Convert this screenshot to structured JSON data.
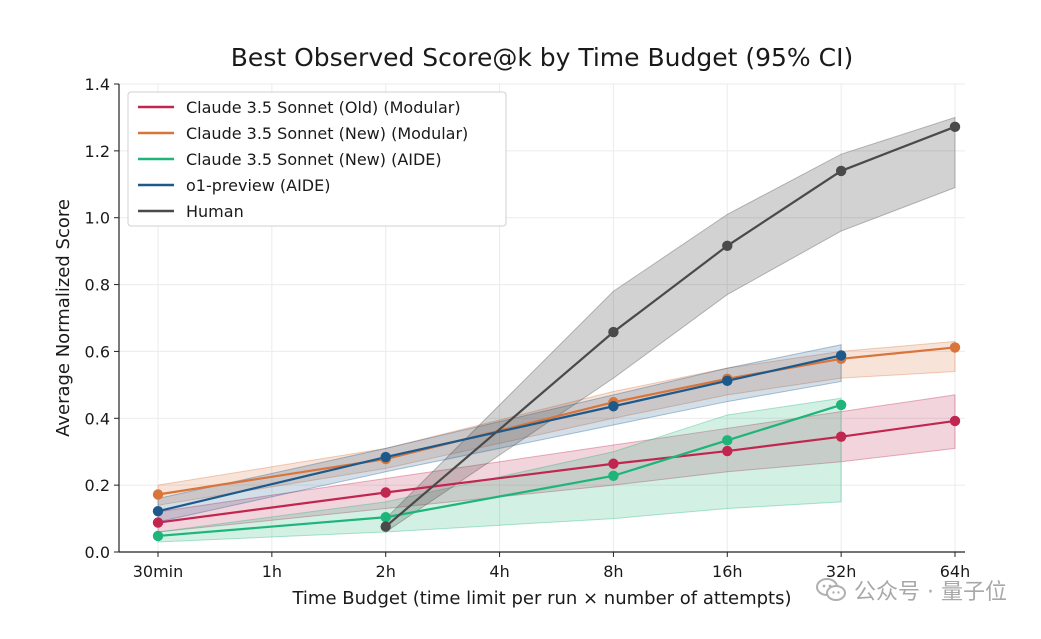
{
  "chart_data": {
    "type": "line",
    "title": "Best Observed Score@k by Time Budget (95% CI)",
    "xlabel": "Time Budget (time limit per run × number of attempts)",
    "ylabel": "Average Normalized Score",
    "categories": [
      "30min",
      "1h",
      "2h",
      "4h",
      "8h",
      "16h",
      "32h",
      "64h"
    ],
    "ylim": [
      0,
      1.4
    ],
    "yticks": [
      "0.0",
      "0.2",
      "0.4",
      "0.6",
      "0.8",
      "1.0",
      "1.2",
      "1.4"
    ],
    "grid": true,
    "legend_position": "top-left",
    "series": [
      {
        "name": "Claude 3.5 Sonnet (Old) (Modular)",
        "color": "#c0264f",
        "points": [
          [
            0,
            0.088
          ],
          [
            2,
            0.178
          ],
          [
            4,
            0.264
          ],
          [
            5,
            0.302
          ],
          [
            6,
            0.345
          ],
          [
            7,
            0.392
          ]
        ],
        "ci_low": [
          [
            0,
            0.06
          ],
          [
            2,
            0.13
          ],
          [
            4,
            0.2
          ],
          [
            5,
            0.24
          ],
          [
            6,
            0.27
          ],
          [
            7,
            0.31
          ]
        ],
        "ci_high": [
          [
            0,
            0.12
          ],
          [
            2,
            0.22
          ],
          [
            4,
            0.32
          ],
          [
            5,
            0.37
          ],
          [
            6,
            0.42
          ],
          [
            7,
            0.47
          ]
        ]
      },
      {
        "name": "Claude 3.5 Sonnet (New) (Modular)",
        "color": "#d9743a",
        "points": [
          [
            0,
            0.172
          ],
          [
            2,
            0.278
          ],
          [
            4,
            0.448
          ],
          [
            5,
            0.518
          ],
          [
            6,
            0.578
          ],
          [
            7,
            0.612
          ]
        ],
        "ci_low": [
          [
            0,
            0.14
          ],
          [
            2,
            0.25
          ],
          [
            4,
            0.4
          ],
          [
            5,
            0.47
          ],
          [
            6,
            0.52
          ],
          [
            7,
            0.54
          ]
        ],
        "ci_high": [
          [
            0,
            0.2
          ],
          [
            2,
            0.31
          ],
          [
            4,
            0.48
          ],
          [
            5,
            0.55
          ],
          [
            6,
            0.6
          ],
          [
            7,
            0.63
          ]
        ]
      },
      {
        "name": "Claude 3.5 Sonnet (New) (AIDE)",
        "color": "#1db57a",
        "points": [
          [
            0,
            0.048
          ],
          [
            2,
            0.104
          ],
          [
            4,
            0.228
          ],
          [
            5,
            0.334
          ],
          [
            6,
            0.44
          ]
        ],
        "ci_low": [
          [
            0,
            0.03
          ],
          [
            2,
            0.06
          ],
          [
            4,
            0.1
          ],
          [
            5,
            0.13
          ],
          [
            6,
            0.15
          ]
        ],
        "ci_high": [
          [
            0,
            0.06
          ],
          [
            2,
            0.15
          ],
          [
            4,
            0.3
          ],
          [
            5,
            0.41
          ],
          [
            6,
            0.46
          ]
        ]
      },
      {
        "name": "o1-preview (AIDE)",
        "color": "#1d5a8c",
        "points": [
          [
            0,
            0.122
          ],
          [
            2,
            0.284
          ],
          [
            4,
            0.436
          ],
          [
            5,
            0.512
          ],
          [
            6,
            0.588
          ]
        ],
        "ci_low": [
          [
            0,
            0.09
          ],
          [
            2,
            0.24
          ],
          [
            4,
            0.38
          ],
          [
            5,
            0.45
          ],
          [
            6,
            0.51
          ]
        ],
        "ci_high": [
          [
            0,
            0.16
          ],
          [
            2,
            0.31
          ],
          [
            4,
            0.47
          ],
          [
            5,
            0.55
          ],
          [
            6,
            0.62
          ]
        ]
      },
      {
        "name": "Human",
        "color": "#4a4a4a",
        "points": [
          [
            2,
            0.076
          ],
          [
            4,
            0.658
          ],
          [
            5,
            0.916
          ],
          [
            6,
            1.14
          ],
          [
            7,
            1.272
          ]
        ],
        "ci_low": [
          [
            2,
            0.06
          ],
          [
            4,
            0.52
          ],
          [
            5,
            0.77
          ],
          [
            6,
            0.96
          ],
          [
            7,
            1.09
          ]
        ],
        "ci_high": [
          [
            2,
            0.1
          ],
          [
            4,
            0.78
          ],
          [
            5,
            1.01
          ],
          [
            6,
            1.19
          ],
          [
            7,
            1.3
          ]
        ]
      }
    ]
  },
  "watermark": {
    "text": "公众号 · 量子位",
    "icon": "wechat-icon"
  }
}
